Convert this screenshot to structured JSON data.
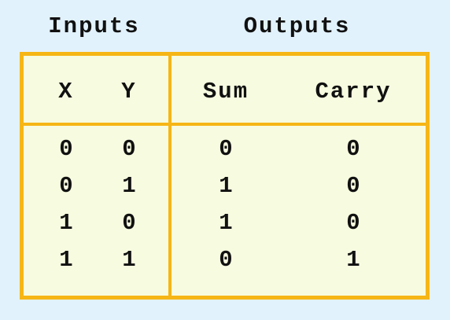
{
  "group_headers": {
    "inputs": "Inputs",
    "outputs": "Outputs"
  },
  "columns": {
    "x": "X",
    "y": "Y",
    "sum": "Sum",
    "carry": "Carry"
  },
  "rows": [
    {
      "x": "0",
      "y": "0",
      "sum": "0",
      "carry": "0"
    },
    {
      "x": "0",
      "y": "1",
      "sum": "1",
      "carry": "0"
    },
    {
      "x": "1",
      "y": "0",
      "sum": "1",
      "carry": "0"
    },
    {
      "x": "1",
      "y": "1",
      "sum": "0",
      "carry": "1"
    }
  ],
  "colors": {
    "background": "#e2f2fd",
    "border": "#f6b616",
    "table_fill": "#f7fbdf",
    "text": "#111111"
  }
}
